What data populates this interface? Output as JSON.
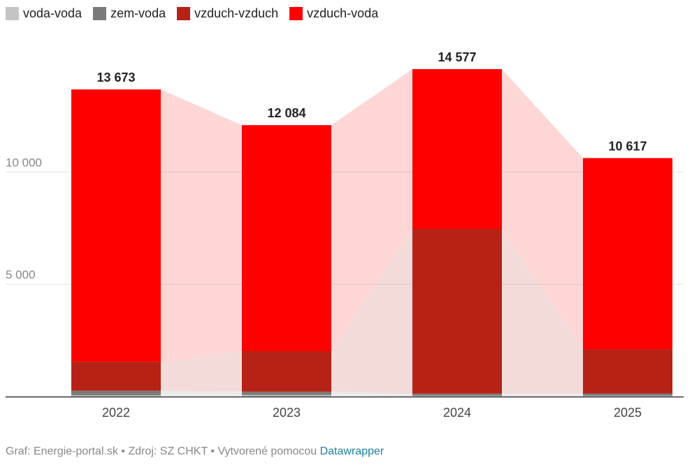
{
  "legend": [
    {
      "label": "voda-voda",
      "color": "#c4c4c4"
    },
    {
      "label": "zem-voda",
      "color": "#7a7a7a"
    },
    {
      "label": "vzduch-vzduch",
      "color": "#b72217"
    },
    {
      "label": "vzduch-voda",
      "color": "#ff0000"
    }
  ],
  "footer": {
    "text": "Graf: Energie-portal.sk • Zdroj: SZ CHKT • Vytvorené pomocou ",
    "link": "Datawrapper"
  },
  "chart_data": {
    "type": "bar",
    "stacked": true,
    "categories": [
      "2022",
      "2023",
      "2024",
      "2025"
    ],
    "series": [
      {
        "name": "voda-voda",
        "color": "#c4c4c4",
        "values": [
          60,
          70,
          40,
          40
        ]
      },
      {
        "name": "zem-voda",
        "color": "#7a7a7a",
        "values": [
          200,
          150,
          90,
          100
        ]
      },
      {
        "name": "vzduch-vzduch",
        "color": "#b72217",
        "values": [
          1290,
          1800,
          7330,
          1960
        ]
      },
      {
        "name": "vzduch-voda",
        "color": "#ff0000",
        "values": [
          12123,
          10064,
          7117,
          8517
        ]
      }
    ],
    "totals": [
      "13 673",
      "12 084",
      "14 577",
      "10 617"
    ],
    "total_values": [
      13673,
      12084,
      14577,
      10617
    ],
    "ylim": [
      0,
      14577
    ],
    "yticks": [
      {
        "value": 5000,
        "label": "5 000"
      },
      {
        "value": 10000,
        "label": "10 000"
      }
    ],
    "grid": true,
    "legend_position": "top-left"
  }
}
